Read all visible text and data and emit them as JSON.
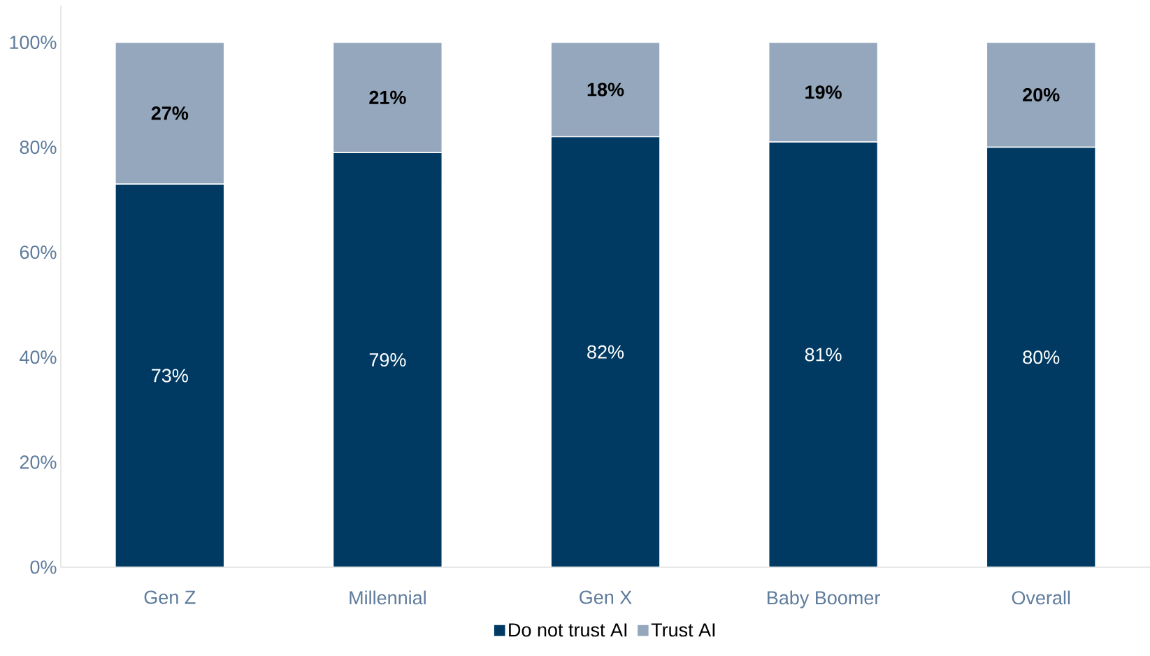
{
  "chart_data": {
    "type": "bar",
    "stacked": true,
    "categories": [
      "Gen Z",
      "Millennial",
      "Gen X",
      "Baby Boomer",
      "Overall"
    ],
    "series": [
      {
        "name": "Do not trust AI",
        "color": "#003a63",
        "values": [
          73,
          79,
          82,
          81,
          80
        ],
        "value_labels": [
          "73%",
          "79%",
          "82%",
          "81%",
          "80%"
        ]
      },
      {
        "name": "Trust AI",
        "color": "#94a7bc",
        "values": [
          27,
          21,
          18,
          19,
          20
        ],
        "value_labels": [
          "27%",
          "21%",
          "18%",
          "19%",
          "20%"
        ]
      }
    ],
    "ylim": [
      0,
      107
    ],
    "yticks": [
      {
        "value": 0,
        "label": "0%"
      },
      {
        "value": 20,
        "label": "20%"
      },
      {
        "value": 40,
        "label": "40%"
      },
      {
        "value": 60,
        "label": "60%"
      },
      {
        "value": 80,
        "label": "80%"
      },
      {
        "value": 100,
        "label": "100%"
      }
    ],
    "grid": false,
    "legend": "bottom"
  }
}
